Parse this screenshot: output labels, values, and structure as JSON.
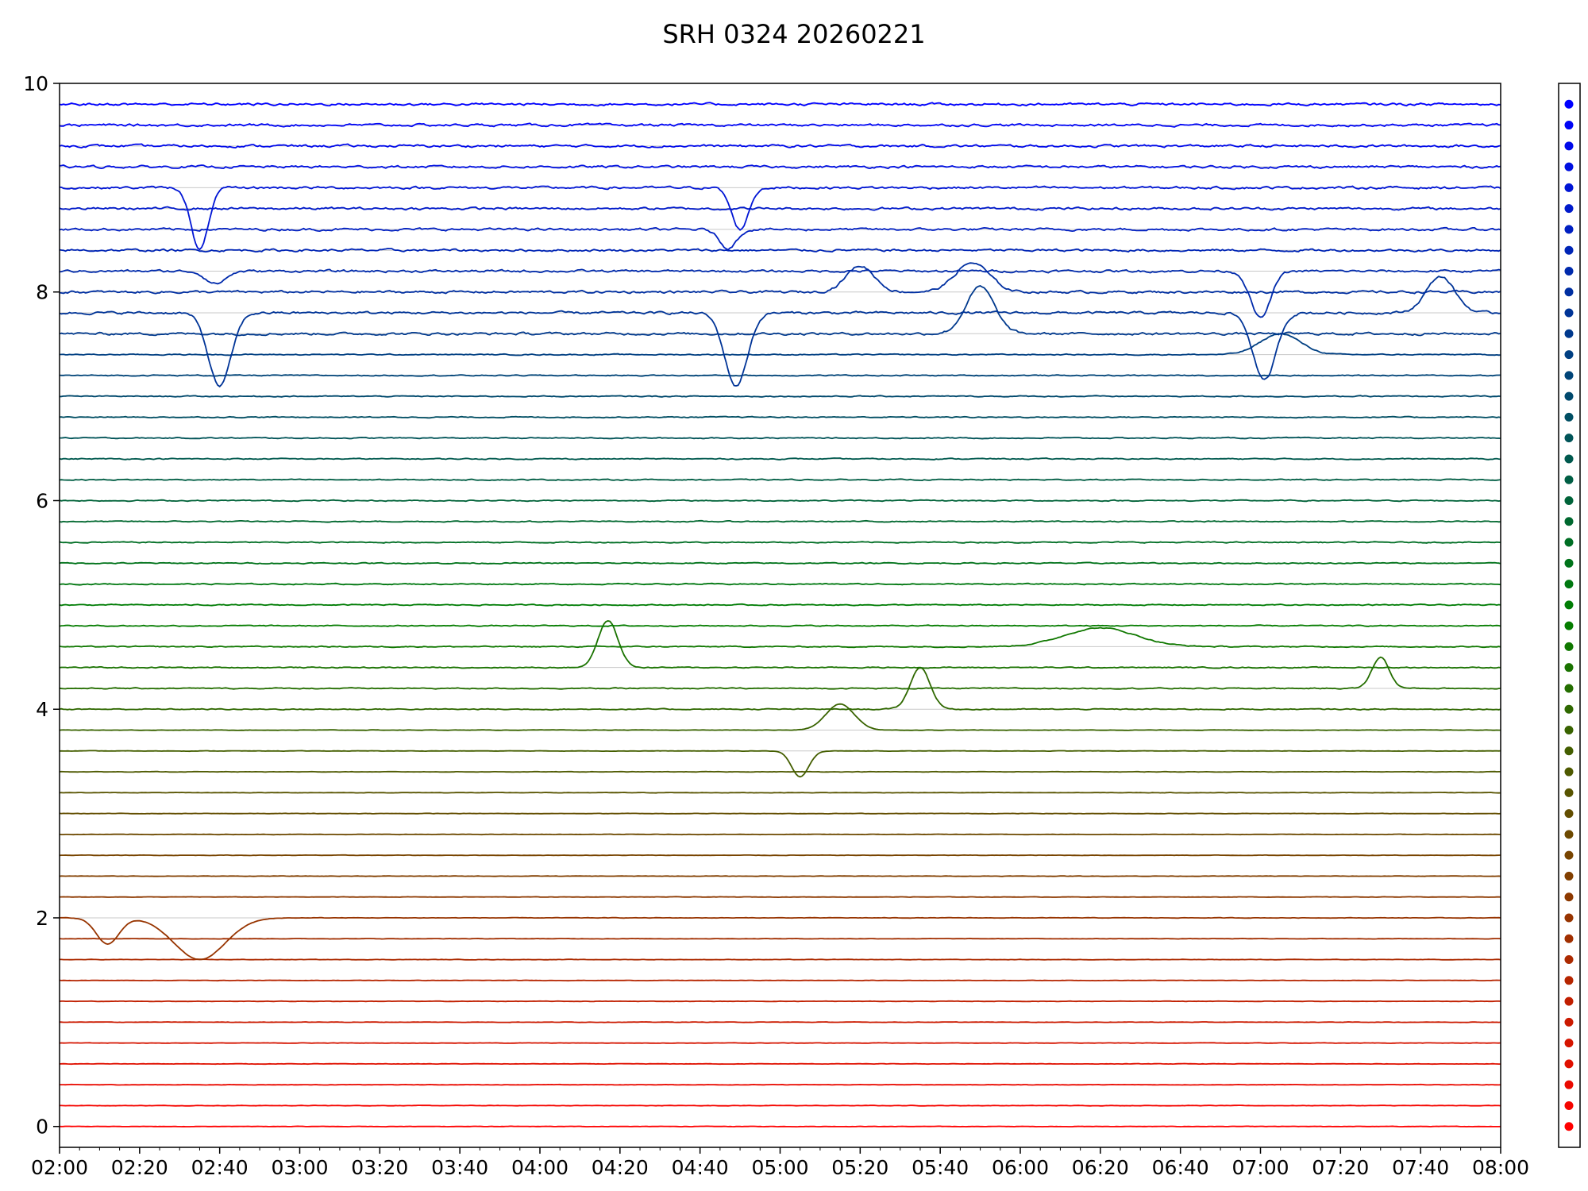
{
  "chart_data": {
    "type": "line",
    "title": "SRH 0324 20260221",
    "xlabel": "",
    "ylabel": "",
    "ylim": [
      -0.2,
      10
    ],
    "xlim": [
      "02:00",
      "08:00"
    ],
    "yticks": [
      0,
      2,
      4,
      6,
      8,
      10
    ],
    "xticks": [
      "02:00",
      "02:20",
      "02:40",
      "03:00",
      "03:20",
      "03:40",
      "04:00",
      "04:20",
      "04:40",
      "05:00",
      "05:20",
      "05:40",
      "06:00",
      "06:20",
      "06:40",
      "07:00",
      "07:20",
      "07:40",
      "08:00"
    ],
    "grid": "horizontal lines at each channel baseline",
    "channel_count": 50,
    "channel_spacing": 0.2,
    "color_gradient": [
      "#ff0000",
      "#008000",
      "#0000ff"
    ],
    "features": [
      {
        "channel": 45,
        "type": "dip",
        "center": "02:35",
        "width_min": 6,
        "depth": 0.6
      },
      {
        "channel": 45,
        "type": "dip",
        "center": "04:50",
        "width_min": 6,
        "depth": 0.4
      },
      {
        "channel": 41,
        "type": "dip",
        "center": "02:39",
        "width_min": 7,
        "depth": 0.12
      },
      {
        "channel": 43,
        "type": "dip",
        "center": "04:47",
        "width_min": 6,
        "depth": 0.18
      },
      {
        "channel": 39,
        "type": "dip",
        "center": "02:40",
        "width_min": 8,
        "depth": 0.7
      },
      {
        "channel": 39,
        "type": "dip",
        "center": "04:49",
        "width_min": 8,
        "depth": 0.7
      },
      {
        "channel": 39,
        "type": "dip",
        "center": "07:01",
        "width_min": 8,
        "depth": 0.65
      },
      {
        "channel": 41,
        "type": "dip",
        "center": "07:00",
        "width_min": 7,
        "depth": 0.45
      },
      {
        "channel": 40,
        "type": "bump",
        "center": "05:20",
        "width_min": 10,
        "height": 0.25
      },
      {
        "channel": 40,
        "type": "bump",
        "center": "05:48",
        "width_min": 12,
        "height": 0.28
      },
      {
        "channel": 39,
        "type": "bump",
        "center": "07:45",
        "width_min": 10,
        "height": 0.35
      },
      {
        "channel": 38,
        "type": "bump",
        "center": "05:50",
        "width_min": 10,
        "height": 0.45
      },
      {
        "channel": 37,
        "type": "bump",
        "center": "07:05",
        "width_min": 14,
        "height": 0.2
      },
      {
        "channel": 22,
        "type": "bump",
        "center": "04:17",
        "width_min": 7,
        "height": 0.45
      },
      {
        "channel": 20,
        "type": "bump",
        "center": "05:35",
        "width_min": 7,
        "height": 0.4
      },
      {
        "channel": 21,
        "type": "bump",
        "center": "07:30",
        "width_min": 6,
        "height": 0.3
      },
      {
        "channel": 23,
        "type": "bump",
        "center": "06:20",
        "width_min": 25,
        "height": 0.18
      },
      {
        "channel": 19,
        "type": "bump",
        "center": "05:15",
        "width_min": 10,
        "height": 0.25
      },
      {
        "channel": 18,
        "type": "dip",
        "center": "05:05",
        "width_min": 6,
        "depth": 0.25
      },
      {
        "channel": 10,
        "type": "dip",
        "center": "02:12",
        "width_min": 8,
        "depth": 0.25
      },
      {
        "channel": 10,
        "type": "dip",
        "center": "02:35",
        "width_min": 18,
        "depth": 0.4
      }
    ]
  },
  "colors": {
    "frame": "#000000",
    "grid": "#c8c8c8"
  }
}
